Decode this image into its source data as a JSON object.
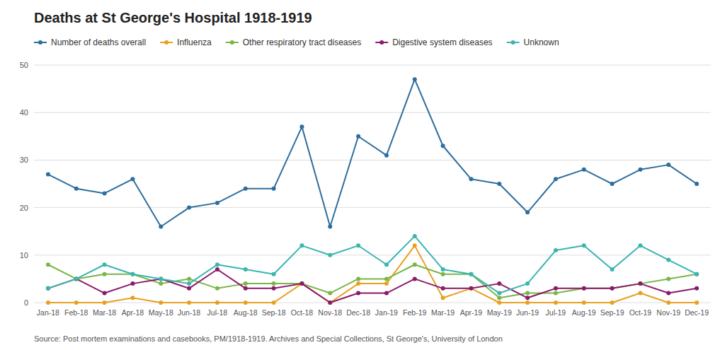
{
  "chart_data": {
    "type": "line",
    "title": "Deaths at St George's Hospital 1918-1919",
    "annotations": [
      "Source: Post mortem examinations and casebooks, PM/1918-1919. Archives and Special Collections, St George's, University of London"
    ],
    "categories": [
      "Jan-18",
      "Feb-18",
      "Mar-18",
      "Apr-18",
      "May-18",
      "Jun-18",
      "Jul-18",
      "Aug-18",
      "Sep-18",
      "Oct-18",
      "Nov-18",
      "Dec-18",
      "Jan-19",
      "Feb-19",
      "Mar-19",
      "Apr-19",
      "May-19",
      "Jun-19",
      "Jul-19",
      "Aug-19",
      "Sep-19",
      "Oct-19",
      "Nov-19",
      "Dec-19"
    ],
    "series": [
      {
        "name": "Number of deaths overall",
        "color": "#2e6e9e",
        "values": [
          27,
          24,
          23,
          26,
          16,
          20,
          21,
          24,
          24,
          37,
          16,
          35,
          31,
          47,
          33,
          26,
          25,
          19,
          26,
          28,
          25,
          28,
          29,
          25
        ]
      },
      {
        "name": "Influenza",
        "color": "#e8a020",
        "values": [
          0,
          0,
          0,
          1,
          0,
          0,
          0,
          0,
          0,
          4,
          0,
          4,
          4,
          12,
          1,
          3,
          0,
          0,
          0,
          0,
          0,
          2,
          0,
          0
        ]
      },
      {
        "name": "Other respiratory tract diseases",
        "color": "#7ab648",
        "values": [
          8,
          5,
          6,
          6,
          4,
          5,
          3,
          4,
          4,
          4,
          2,
          5,
          5,
          8,
          6,
          6,
          1,
          2,
          2,
          3,
          3,
          4,
          5,
          6
        ]
      },
      {
        "name": "Digestive system diseases",
        "color": "#8b1a6b",
        "values": [
          3,
          5,
          2,
          4,
          5,
          3,
          7,
          3,
          3,
          4,
          0,
          2,
          2,
          5,
          3,
          3,
          4,
          1,
          3,
          3,
          3,
          4,
          2,
          3
        ]
      },
      {
        "name": "Unknown",
        "color": "#3ab5b0",
        "values": [
          3,
          5,
          8,
          6,
          5,
          4,
          8,
          7,
          6,
          12,
          10,
          12,
          8,
          14,
          7,
          6,
          2,
          4,
          11,
          12,
          7,
          12,
          9,
          6
        ]
      }
    ],
    "ylim": [
      0,
      50
    ],
    "yticks": [
      0,
      10,
      20,
      30,
      40,
      50
    ],
    "grid": true,
    "legend": "top",
    "marker": "circle"
  }
}
